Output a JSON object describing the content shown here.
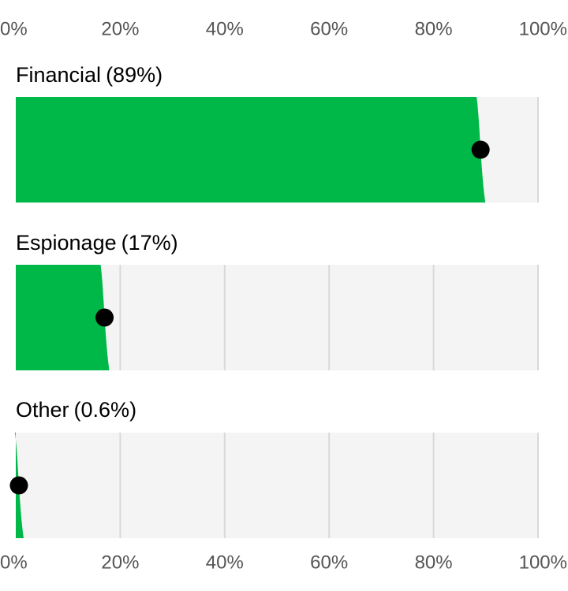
{
  "chart_data": {
    "type": "bar",
    "categories": [
      "Financial",
      "Espionage",
      "Other"
    ],
    "values": [
      89,
      17,
      0.6
    ],
    "value_labels": [
      "(89%)",
      "(17%)",
      "(0.6%)"
    ],
    "color": "#00b847",
    "xlim": [
      0,
      100
    ],
    "xticks": [
      {
        "value": 0,
        "label": "0%"
      },
      {
        "value": 20,
        "label": "20%"
      },
      {
        "value": 40,
        "label": "40%"
      },
      {
        "value": 60,
        "label": "60%"
      },
      {
        "value": 80,
        "label": "80%"
      },
      {
        "value": 100,
        "label": "100%"
      }
    ],
    "grid": true
  }
}
